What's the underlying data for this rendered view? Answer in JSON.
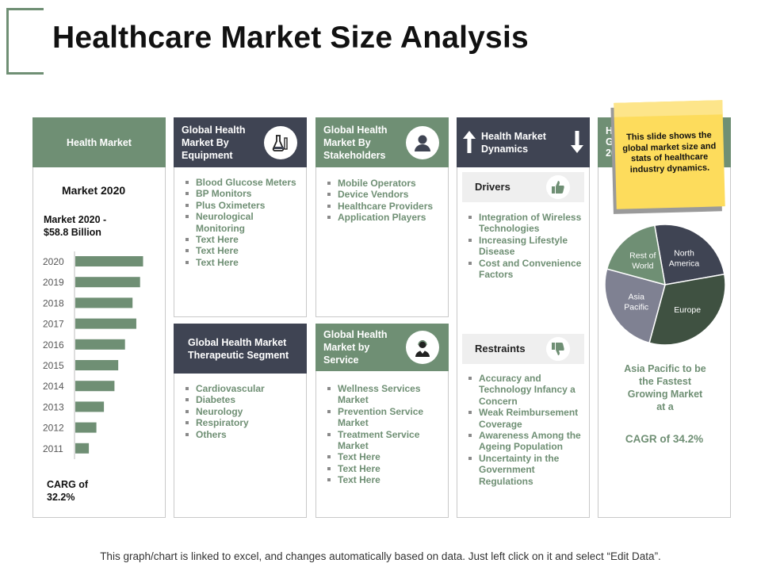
{
  "title": "Healthcare Market Size Analysis",
  "footer": "This graph/chart is linked to excel, and changes automatically based on data.  Just left click on it and select “Edit Data”.",
  "colors": {
    "green": "#6f8f74",
    "navy": "#3f4453",
    "yellow": "#fddc5c",
    "gray": "#7f8192"
  },
  "health_market": {
    "header": "Health Market",
    "market_label": "Market 2020",
    "market_value": "Market 2020 - $58.8 Billion",
    "carg": "CARG of 32.2%"
  },
  "chart_data": [
    {
      "type": "bar",
      "orientation": "horizontal",
      "categories": [
        "2020",
        "2019",
        "2018",
        "2017",
        "2016",
        "2015",
        "2014",
        "2013",
        "2012",
        "2011"
      ],
      "values": [
        90,
        86,
        76,
        81,
        66,
        57,
        52,
        38,
        28,
        18
      ],
      "color": "#6f8f74"
    },
    {
      "type": "pie",
      "labels": [
        "North America",
        "Europe",
        "Asia Pacific",
        "Rest of World"
      ],
      "values": [
        25,
        32,
        25,
        18
      ],
      "colors": [
        "#3f4453",
        "#3f5141",
        "#7f8192",
        "#6f8f74"
      ]
    }
  ],
  "equipment": {
    "header": "Global Health Market By Equipment",
    "icon": "lab-flask-icon",
    "items": [
      "Blood Glucose Meters",
      "BP Monitors",
      "Plus Oximeters",
      "Neurological Monitoring",
      "Text Here",
      "Text Here",
      "Text Here"
    ]
  },
  "stakeholders": {
    "header": "Global Health Market By Stakeholders",
    "icon": "user-icon",
    "items": [
      "Mobile Operators",
      "Device Vendors",
      "Healthcare Providers",
      "Application  Players"
    ]
  },
  "therapeutic": {
    "header": "Global Health Market Therapeutic Segment",
    "items": [
      "Cardiovascular",
      "Diabetes",
      "Neurology",
      "Respiratory",
      "Others"
    ]
  },
  "service": {
    "header": "Global Health Market by Service",
    "icon": "doctor-icon",
    "items": [
      "Wellness Services Market",
      "Prevention Service Market",
      "Treatment Service Market",
      "Text Here",
      "Text Here",
      "Text Here"
    ]
  },
  "dynamics": {
    "header": "Health Market Dynamics",
    "drivers_label": "Drivers",
    "drivers": [
      "Integration  of Wireless Technologies",
      "Increasing Lifestyle Disease",
      "Cost and Convenience Factors"
    ],
    "restraints_label": "Restraints",
    "restraints": [
      "Accuracy and Technology Infancy a Concern",
      "Weak Reimbursement Coverage",
      "Awareness Among the Ageing Population",
      "Uncertainty in the Government Regulations"
    ]
  },
  "geography": {
    "header_partial": [
      "He",
      "G",
      "20"
    ],
    "pie_labels": {
      "north_america": "North America",
      "europe": "Europe",
      "asia_pacific": "Asia Pacific",
      "rest_of_world": "Rest of World"
    },
    "caption": "Asia Pacific to be the Fastest Growing Market at a",
    "cagr": "CAGR of 34.2%"
  },
  "sticky_note": "This slide shows the global market size and stats of healthcare industry dynamics."
}
